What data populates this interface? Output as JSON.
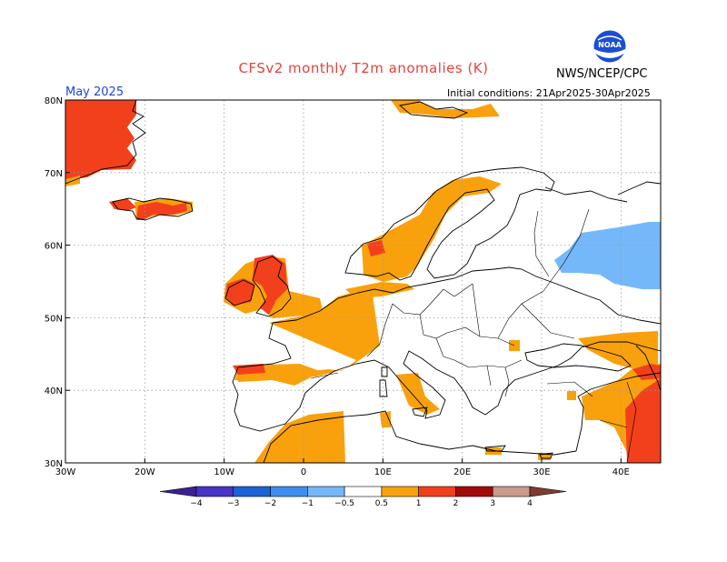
{
  "header": {
    "title": "CFSv2 monthly T2m anomalies (K)",
    "agency": "NWS/NCEP/CPC",
    "logo_text": "NOAA",
    "month": "May 2025",
    "initial_conditions": "Initial conditions: 21Apr2025-30Apr2025"
  },
  "map": {
    "projection": "lat-lon",
    "lon_range": [
      -30,
      45
    ],
    "lat_range": [
      30,
      80
    ],
    "x_ticks": [
      {
        "lon": -30,
        "label": "30W"
      },
      {
        "lon": -20,
        "label": "20W"
      },
      {
        "lon": -10,
        "label": "10W"
      },
      {
        "lon": 0,
        "label": "0"
      },
      {
        "lon": 10,
        "label": "10E"
      },
      {
        "lon": 20,
        "label": "20E"
      },
      {
        "lon": 30,
        "label": "30E"
      },
      {
        "lon": 40,
        "label": "40E"
      }
    ],
    "y_ticks": [
      {
        "lat": 30,
        "label": "30N"
      },
      {
        "lat": 40,
        "label": "40N"
      },
      {
        "lat": 50,
        "label": "50N"
      },
      {
        "lat": 60,
        "label": "60N"
      },
      {
        "lat": 70,
        "label": "70N"
      },
      {
        "lat": 80,
        "label": "80N"
      }
    ],
    "grid": "dotted",
    "anomaly_regions": [
      {
        "name": "Greenland",
        "category": "1 to 2",
        "lon": [
          -30,
          -21
        ],
        "lat": [
          68,
          80
        ]
      },
      {
        "name": "Iceland",
        "category": "0.5 to 2",
        "lon": [
          -24,
          -13
        ],
        "lat": [
          63.3,
          66.5
        ]
      },
      {
        "name": "British Isles",
        "category": "0.5 to 2",
        "lon": [
          -10,
          2
        ],
        "lat": [
          50,
          59
        ]
      },
      {
        "name": "France and Iberia north",
        "category": "0.5 to 1",
        "lon": [
          -9,
          8
        ],
        "lat": [
          42,
          51
        ]
      },
      {
        "name": "Scandinavia",
        "category": "0.5 to 1",
        "lon": [
          5,
          25
        ],
        "lat": [
          54,
          70
        ]
      },
      {
        "name": "North Africa",
        "category": "0.5 to 1",
        "lon": [
          -3,
          5
        ],
        "lat": [
          30,
          35
        ]
      },
      {
        "name": "Black Sea and Caucasus",
        "category": "0.5 to 1",
        "lon": [
          34,
          45
        ],
        "lat": [
          38,
          47
        ]
      },
      {
        "name": "Middle East",
        "category": "1 to 2",
        "lon": [
          40,
          45
        ],
        "lat": [
          30,
          40
        ]
      },
      {
        "name": "Western Russia",
        "category": "-1 to -0.5",
        "lon": [
          32,
          45
        ],
        "lat": [
          53,
          63
        ]
      }
    ]
  },
  "legend": {
    "tick_labels": [
      "−4",
      "−3",
      "−2",
      "−1",
      "−0.5",
      "0.5",
      "1",
      "2",
      "3",
      "4"
    ],
    "bins": [
      {
        "range": "< -4",
        "color": "#3d1f94"
      },
      {
        "range": "-4 to -3",
        "color": "#4733c8"
      },
      {
        "range": "-3 to -2",
        "color": "#1c62d6"
      },
      {
        "range": "-2 to -1",
        "color": "#3d8ef0"
      },
      {
        "range": "-1 to -0.5",
        "color": "#74b8fa"
      },
      {
        "range": "-0.5 to 0.5",
        "color": "#ffffff"
      },
      {
        "range": "0.5 to 1",
        "color": "#f9a10c"
      },
      {
        "range": "1 to 2",
        "color": "#f3401c"
      },
      {
        "range": "2 to 3",
        "color": "#a40a0a"
      },
      {
        "range": "3 to 4",
        "color": "#c99a8e"
      },
      {
        "range": "> 4",
        "color": "#7b3d30"
      }
    ]
  }
}
